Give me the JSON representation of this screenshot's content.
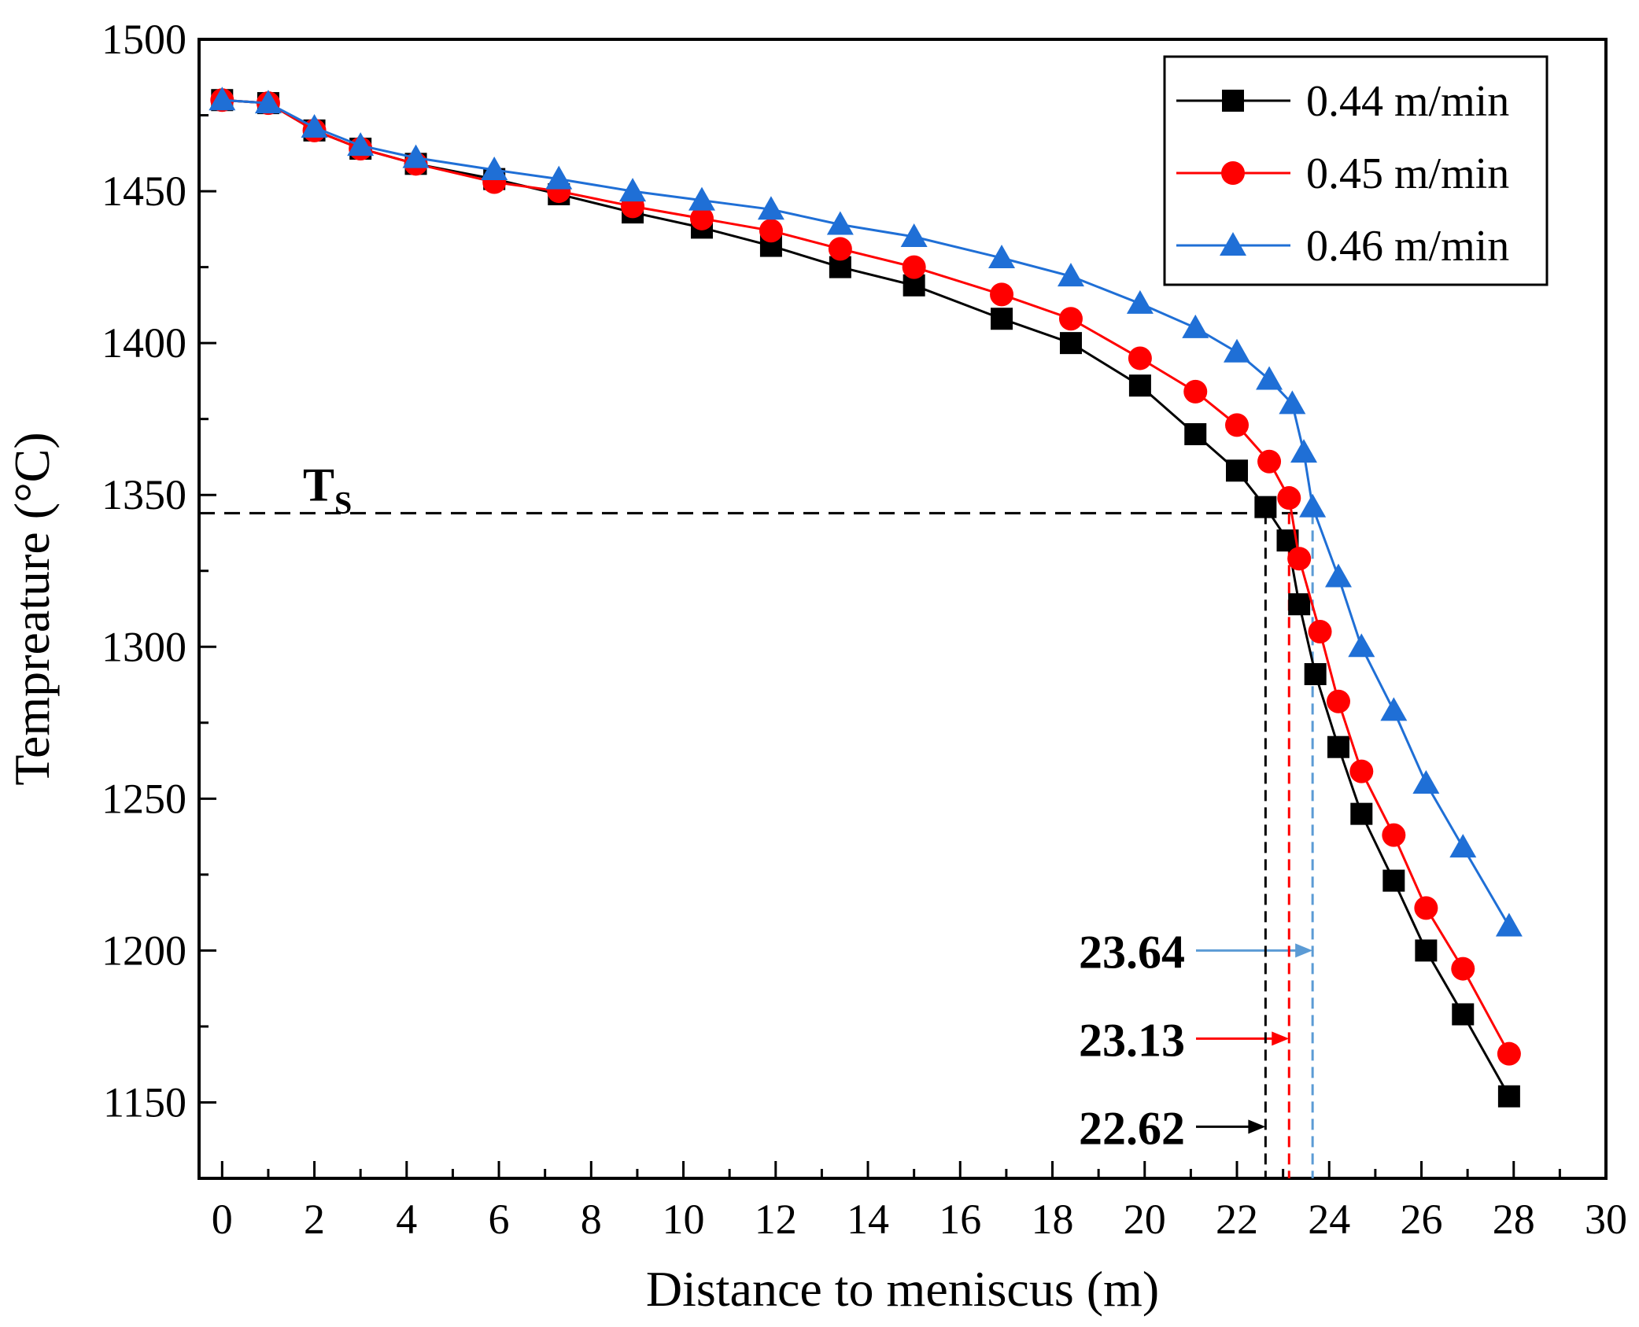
{
  "chart_data": {
    "type": "line",
    "title": "",
    "xlabel": "Distance to meniscus (m)",
    "ylabel": "Tempreature (°C)",
    "xlim": [
      -0.5,
      30
    ],
    "ylim": [
      1125,
      1500
    ],
    "x_ticks": [
      0,
      2,
      4,
      6,
      8,
      10,
      12,
      14,
      16,
      18,
      20,
      22,
      24,
      26,
      28,
      30
    ],
    "x_tick_labels": [
      "0",
      "2",
      "4",
      "6",
      "8",
      "10",
      "12",
      "14",
      "16",
      "18",
      "20",
      "22",
      "24",
      "26",
      "28",
      "30"
    ],
    "y_ticks": [
      1150,
      1200,
      1250,
      1300,
      1350,
      1400,
      1450,
      1500
    ],
    "y_tick_labels": [
      "1150",
      "1200",
      "1250",
      "1300",
      "1350",
      "1400",
      "1450",
      "1500"
    ],
    "grid": false,
    "legend_position": "top-right",
    "series": [
      {
        "name": "0.44 m/min",
        "color": "#000000",
        "marker": "square",
        "x": [
          0,
          1,
          2,
          3,
          4.2,
          5.9,
          7.3,
          8.9,
          10.4,
          11.9,
          13.4,
          15,
          16.9,
          18.4,
          19.9,
          21.1,
          22,
          22.62,
          23.1,
          23.35,
          23.7,
          24.2,
          24.7,
          25.4,
          26.1,
          26.9,
          27.9
        ],
        "values": [
          1480,
          1479,
          1470,
          1464,
          1459,
          1454,
          1449,
          1443,
          1438,
          1432,
          1425,
          1419,
          1408,
          1400,
          1386,
          1370,
          1358,
          1346,
          1335,
          1314,
          1291,
          1267,
          1245,
          1223,
          1200,
          1179,
          1152
        ]
      },
      {
        "name": "0.45 m/min",
        "color": "#ff0000",
        "marker": "circle",
        "x": [
          0,
          1,
          2,
          3,
          4.2,
          5.9,
          7.3,
          8.9,
          10.4,
          11.9,
          13.4,
          15,
          16.9,
          18.4,
          19.9,
          21.1,
          22,
          22.7,
          23.13,
          23.35,
          23.8,
          24.2,
          24.7,
          25.4,
          26.1,
          26.9,
          27.9
        ],
        "values": [
          1480,
          1479,
          1470,
          1464,
          1459,
          1453,
          1450,
          1445,
          1441,
          1437,
          1431,
          1425,
          1416,
          1408,
          1395,
          1384,
          1373,
          1361,
          1349,
          1329,
          1305,
          1282,
          1259,
          1238,
          1214,
          1194,
          1166
        ]
      },
      {
        "name": "0.46 m/min",
        "color": "#1f6fd6",
        "marker": "triangle",
        "x": [
          0,
          1,
          2,
          3,
          4.2,
          5.9,
          7.3,
          8.9,
          10.4,
          11.9,
          13.4,
          15,
          16.9,
          18.4,
          19.9,
          21.1,
          22,
          22.7,
          23.2,
          23.45,
          23.64,
          24.2,
          24.7,
          25.4,
          26.1,
          26.9,
          27.9
        ],
        "values": [
          1480,
          1479,
          1471,
          1465,
          1461,
          1457,
          1454,
          1450,
          1447,
          1444,
          1439,
          1435,
          1428,
          1422,
          1413,
          1405,
          1397,
          1388,
          1380,
          1364,
          1346,
          1323,
          1300,
          1279,
          1255,
          1234,
          1208
        ]
      }
    ],
    "annotations": {
      "ts_label": "T",
      "ts_subscript": "S",
      "ts_value": 1344,
      "markers": [
        {
          "label": "23.64",
          "x": 23.64,
          "y_at": 1200,
          "color": "#5b9bd5"
        },
        {
          "label": "23.13",
          "x": 23.13,
          "y_at": 1171,
          "color": "#ff0000"
        },
        {
          "label": "22.62",
          "x": 22.62,
          "y_at": 1142,
          "color": "#000000"
        }
      ]
    }
  }
}
